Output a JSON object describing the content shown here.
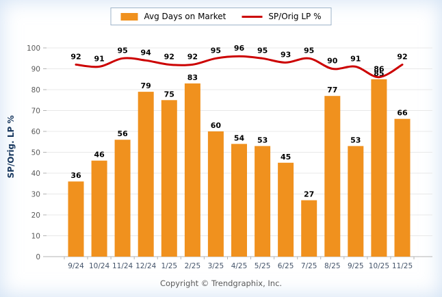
{
  "legend": {
    "bar_label": "Avg Days on Market",
    "line_label": "SP/Orig LP %"
  },
  "footer": {
    "copyright": "Copyright © Trendgraphix, Inc."
  },
  "colors": {
    "bar": "#F0911E",
    "line": "#CC0000",
    "grid": "#E8E8E8",
    "axis": "#B3B3B3",
    "value_label": "#000000",
    "ytick_text": "#595959",
    "xtick_text": "#44546A",
    "axis_title": "#17375E",
    "legend_border": "#9DB3C8",
    "copyright": "#595959"
  },
  "chart_data": {
    "type": "bar",
    "categories": [
      "9/24",
      "10/24",
      "11/24",
      "12/24",
      "1/25",
      "2/25",
      "3/25",
      "4/25",
      "5/25",
      "6/25",
      "7/25",
      "8/25",
      "9/25",
      "10/25",
      "11/25"
    ],
    "series": [
      {
        "name": "Avg Days on Market",
        "type": "bar",
        "values": [
          36,
          46,
          56,
          79,
          75,
          83,
          60,
          54,
          53,
          45,
          27,
          77,
          53,
          85,
          66
        ]
      },
      {
        "name": "SP/Orig LP %",
        "type": "line",
        "values": [
          92,
          91,
          95,
          94,
          92,
          92,
          95,
          96,
          95,
          93,
          95,
          90,
          91,
          86,
          92
        ]
      }
    ],
    "title": "",
    "xlabel": "",
    "ylabel": "SP/Orig. LP %",
    "ylim": [
      0,
      100
    ],
    "yticks": [
      0,
      10,
      20,
      30,
      40,
      50,
      60,
      70,
      80,
      90,
      100
    ],
    "grid": true,
    "legend_position": "top-center"
  }
}
